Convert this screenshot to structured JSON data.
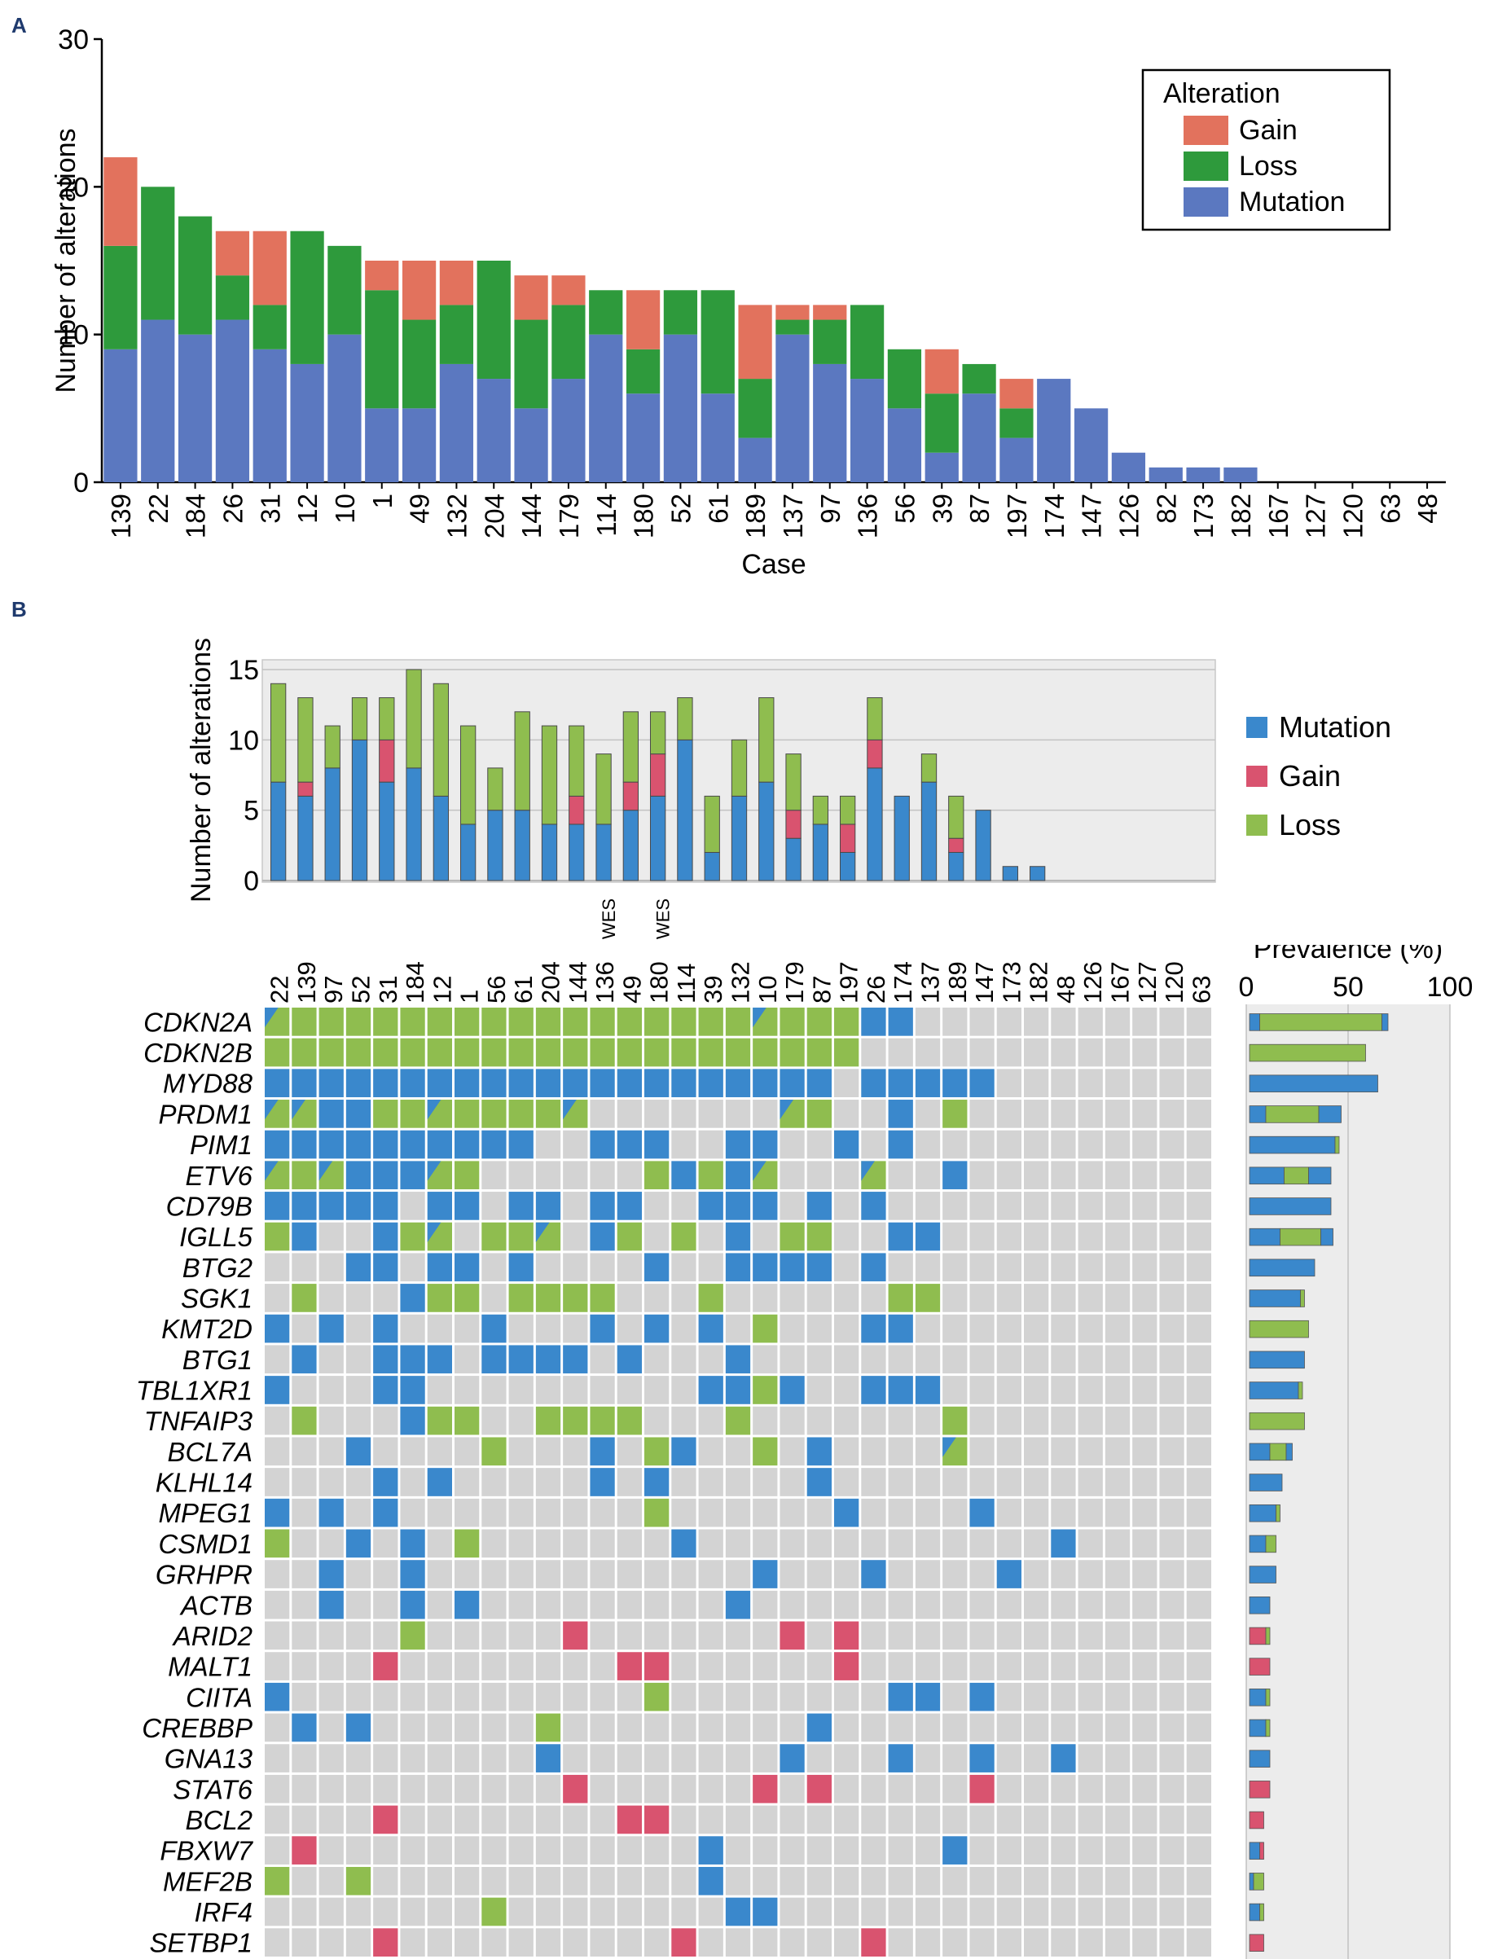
{
  "panel_labels": {
    "a": "A",
    "b": "B"
  },
  "chart_data": [
    {
      "type": "bar",
      "stacked": true,
      "ylabel": "Number of alterations",
      "xlabel": "Case",
      "ylim": [
        0,
        30
      ],
      "yticks": [
        0,
        10,
        20,
        30
      ],
      "legend": {
        "title": "Alteration",
        "position": "top-right"
      },
      "categories": [
        "139",
        "22",
        "184",
        "26",
        "31",
        "12",
        "10",
        "1",
        "49",
        "132",
        "204",
        "144",
        "179",
        "114",
        "180",
        "52",
        "61",
        "189",
        "137",
        "97",
        "136",
        "56",
        "39",
        "87",
        "197",
        "174",
        "147",
        "126",
        "82",
        "173",
        "182",
        "167",
        "127",
        "120",
        "63",
        "48"
      ],
      "series": [
        {
          "name": "Mutation",
          "color": "#5b78c0",
          "values": [
            9,
            11,
            10,
            11,
            9,
            8,
            10,
            5,
            5,
            8,
            7,
            5,
            7,
            10,
            6,
            10,
            6,
            3,
            10,
            8,
            7,
            5,
            2,
            6,
            3,
            7,
            5,
            2,
            1,
            1,
            1,
            0,
            0,
            0,
            0,
            0
          ]
        },
        {
          "name": "Loss",
          "color": "#2e9a3c",
          "values": [
            7,
            9,
            8,
            3,
            3,
            9,
            6,
            8,
            6,
            4,
            8,
            6,
            5,
            3,
            3,
            3,
            7,
            4,
            1,
            3,
            5,
            4,
            4,
            2,
            2,
            0,
            0,
            0,
            0,
            0,
            0,
            0,
            0,
            0,
            0,
            0
          ]
        },
        {
          "name": "Gain",
          "color": "#e2725d",
          "values": [
            6,
            0,
            0,
            3,
            5,
            0,
            0,
            2,
            4,
            3,
            0,
            3,
            2,
            0,
            4,
            0,
            0,
            5,
            1,
            1,
            0,
            0,
            3,
            0,
            2,
            0,
            0,
            0,
            0,
            0,
            0,
            0,
            0,
            0,
            0,
            0
          ]
        }
      ]
    },
    {
      "type": "bar",
      "stacked": true,
      "ylabel": "Number of alterations",
      "ylim": [
        0,
        15
      ],
      "yticks": [
        0,
        5,
        10,
        15
      ],
      "legend": {
        "position": "right"
      },
      "categories": [
        "22",
        "139",
        "97",
        "52",
        "31",
        "184",
        "12",
        "1",
        "56",
        "61",
        "204",
        "144",
        "136",
        "49",
        "180",
        "114",
        "39",
        "132",
        "10",
        "179",
        "87",
        "197",
        "26",
        "174",
        "137",
        "189",
        "147",
        "173",
        "182",
        "48",
        "126",
        "167",
        "127",
        "120",
        "63"
      ],
      "wes_label": "WES",
      "wes_cases": [
        "136",
        "180"
      ],
      "series": [
        {
          "name": "Mutation",
          "color": "#3a88cc",
          "values": [
            7,
            6,
            8,
            10,
            7,
            8,
            6,
            4,
            5,
            5,
            4,
            4,
            4,
            5,
            6,
            10,
            2,
            6,
            7,
            3,
            4,
            2,
            8,
            6,
            7,
            2,
            5,
            1,
            1,
            0,
            0,
            0,
            0,
            0,
            0
          ]
        },
        {
          "name": "Gain",
          "color": "#d9536f",
          "values": [
            0,
            1,
            0,
            0,
            3,
            0,
            0,
            0,
            0,
            0,
            0,
            2,
            0,
            2,
            3,
            0,
            0,
            0,
            0,
            2,
            0,
            2,
            2,
            0,
            0,
            1,
            0,
            0,
            0,
            0,
            0,
            0,
            0,
            0,
            0
          ]
        },
        {
          "name": "Loss",
          "color": "#8fbd4f",
          "values": [
            7,
            6,
            3,
            3,
            3,
            7,
            8,
            7,
            3,
            7,
            7,
            5,
            5,
            5,
            3,
            3,
            4,
            4,
            6,
            4,
            2,
            2,
            3,
            0,
            2,
            3,
            0,
            0,
            0,
            0,
            0,
            0,
            0,
            0,
            0
          ]
        }
      ]
    },
    {
      "type": "heatmap",
      "genes": [
        "CDKN2A",
        "CDKN2B",
        "MYD88",
        "PRDM1",
        "PIM1",
        "ETV6",
        "CD79B",
        "IGLL5",
        "BTG2",
        "SGK1",
        "KMT2D",
        "BTG1",
        "TBL1XR1",
        "TNFAIP3",
        "BCL7A",
        "KLHL14",
        "MPEG1",
        "CSMD1",
        "GRHPR",
        "ACTB",
        "ARID2",
        "MALT1",
        "CIITA",
        "CREBBP",
        "GNA13",
        "STAT6",
        "BCL2",
        "FBXW7",
        "MEF2B",
        "IRF4",
        "SETBP1"
      ],
      "legend_codes": {
        "0": "none",
        "M": "Mutation",
        "G": "Gain",
        "L": "Loss",
        "B": "Mutation + Loss"
      },
      "colors": {
        "M": "#3a88cc",
        "G": "#d9536f",
        "L": "#8fbd4f",
        "none": "#d3d3d3"
      },
      "matrix": [
        "BLLLLLLLLLLLLLLLLLBLLLMM00000000000",
        "LLLLLLLLLLLLLLLLLLLLLL0000000000000",
        "MMMMMMMMMMMMMMMMMMMMM0MMMMM00000000",
        "BBMMLLBLLLLB0000000BL00M0L000000000",
        "MMMMMMMMMM00MMM00MM00M0M00000000000",
        "BLBMMMBL000000LMLMB000B00M000000000",
        "MMMMM0MM0MM0MM00MMM0M0M000000000000",
        "LM00MLB0LLB0ML0L0M0LL00MM0000000000",
        "000MM0MM0M0000M00MMMM0M000000000000",
        "0L000MLL0LLLL000L000000LL0000000000",
        "M0M0M000M000M0M0M0L000MM00000000000",
        "0M00MMM0MMMM0M000M0000000000000000000",
        "M000MM0000000000MMLM00MMM0000000000",
        "0L000MLL00LLLL000L0000000L000000000",
        "000M0000L000M0LM00L0M0000B000000000",
        "0000M0M00000M0M00000M000000000000000",
        "M0M0M000000000L000000M0000M00000000",
        "L00M0M0L0000000M0000000000000M000000",
        "00M00M000000000000M000M0000M000000000",
        "00M00M0M000000000M0000000000000000000",
        "00000L00000G0000000G0G00000000000000",
        "0000G00000000GG000000G00000000000000",
        "M0000000000000L00000000MM0M0000000000",
        "0M0M000000L000000000M000000000000000",
        "0000000000M00000000M000M00M00M0000000",
        "00000000000G000000G0G00000G00000000",
        "0000G00000000GG0000000000000000000000",
        "0G00000000000000M00000000M000000000000",
        "L00L000000000000M0000000000000000000",
        "00000000L00000000MM00000000000000000000",
        "0000G0000000000G000000G0000000000000"
      ],
      "prevalence_title": "Prevalence (%)",
      "prevalence_ticks": [
        0,
        50,
        100
      ],
      "prevalence": [
        {
          "gene": "CDKN2A",
          "mutation": 5,
          "loss": 60,
          "both": 3
        },
        {
          "gene": "CDKN2B",
          "mutation": 0,
          "loss": 57,
          "both": 0
        },
        {
          "gene": "MYD88",
          "mutation": 63,
          "loss": 0,
          "both": 0
        },
        {
          "gene": "PRDM1",
          "mutation": 8,
          "loss": 26,
          "both": 11
        },
        {
          "gene": "PIM1",
          "mutation": 42,
          "loss": 2,
          "both": 0
        },
        {
          "gene": "ETV6",
          "mutation": 17,
          "loss": 12,
          "both": 11
        },
        {
          "gene": "CD79B",
          "mutation": 40,
          "loss": 0,
          "both": 0
        },
        {
          "gene": "IGLL5",
          "mutation": 15,
          "loss": 20,
          "both": 6
        },
        {
          "gene": "BTG2",
          "mutation": 32,
          "loss": 0,
          "both": 0
        },
        {
          "gene": "SGK1",
          "mutation": 25,
          "loss": 2,
          "both": 0
        },
        {
          "gene": "KMT2D",
          "mutation": 0,
          "loss": 29,
          "both": 0
        },
        {
          "gene": "BTG1",
          "mutation": 27,
          "loss": 0,
          "both": 0
        },
        {
          "gene": "TBL1XR1",
          "mutation": 24,
          "loss": 2,
          "both": 0
        },
        {
          "gene": "TNFAIP3",
          "mutation": 0,
          "loss": 27,
          "both": 0
        },
        {
          "gene": "BCL7A",
          "mutation": 10,
          "loss": 8,
          "both": 3
        },
        {
          "gene": "KLHL14",
          "mutation": 16,
          "loss": 0,
          "both": 0
        },
        {
          "gene": "MPEG1",
          "mutation": 13,
          "loss": 2,
          "both": 0
        },
        {
          "gene": "CSMD1",
          "mutation": 8,
          "loss": 5,
          "both": 0
        },
        {
          "gene": "GRHPR",
          "mutation": 13,
          "loss": 0,
          "both": 0
        },
        {
          "gene": "ACTB",
          "mutation": 10,
          "loss": 0,
          "both": 0
        },
        {
          "gene": "ARID2",
          "mutation": 0,
          "loss": 2,
          "gain": 8
        },
        {
          "gene": "MALT1",
          "mutation": 0,
          "loss": 0,
          "gain": 10
        },
        {
          "gene": "CIITA",
          "mutation": 8,
          "loss": 2,
          "both": 0
        },
        {
          "gene": "CREBBP",
          "mutation": 8,
          "loss": 2,
          "both": 0
        },
        {
          "gene": "GNA13",
          "mutation": 10,
          "loss": 0,
          "both": 0
        },
        {
          "gene": "STAT6",
          "mutation": 0,
          "loss": 0,
          "gain": 10
        },
        {
          "gene": "BCL2",
          "mutation": 0,
          "loss": 0,
          "gain": 7
        },
        {
          "gene": "FBXW7",
          "mutation": 5,
          "loss": 0,
          "gain": 2
        },
        {
          "gene": "MEF2B",
          "mutation": 2,
          "loss": 5,
          "both": 0
        },
        {
          "gene": "IRF4",
          "mutation": 5,
          "loss": 2,
          "both": 0
        },
        {
          "gene": "SETBP1",
          "mutation": 0,
          "loss": 0,
          "gain": 7
        }
      ]
    }
  ]
}
